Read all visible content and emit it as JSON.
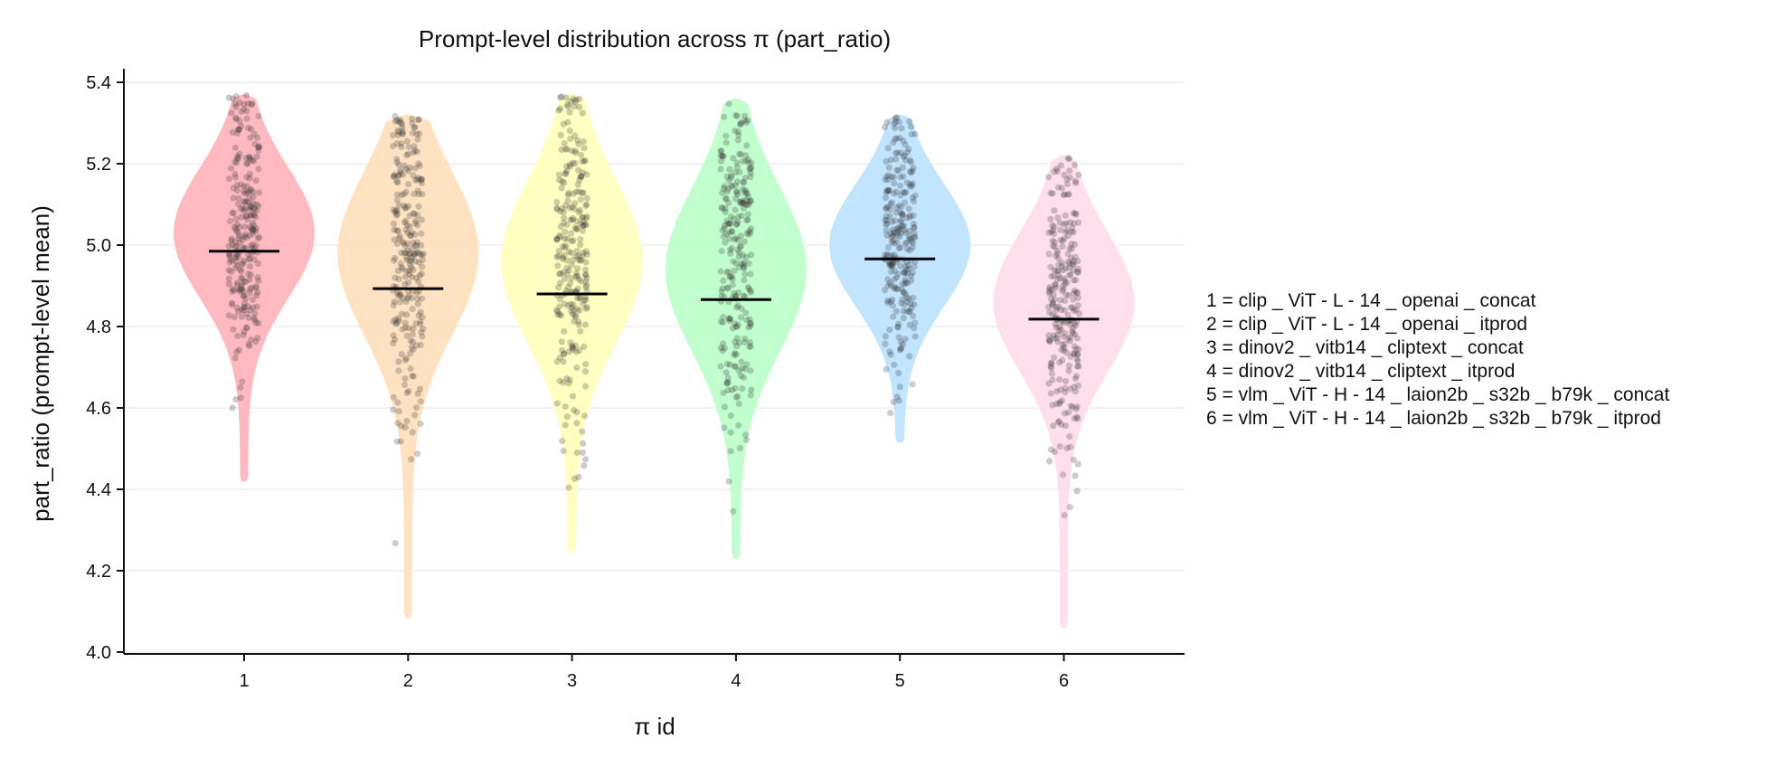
{
  "chart_data": {
    "type": "violin",
    "title": "Prompt-level distribution across π (part_ratio)",
    "xlabel": "π id",
    "ylabel": "part_ratio (prompt-level mean)",
    "ylim": [
      4.0,
      5.4
    ],
    "yticks": [
      4.0,
      4.2,
      4.4,
      4.6,
      4.8,
      5.0,
      5.2,
      5.4
    ],
    "ytick_labels": [
      "4.0",
      "4.2",
      "4.4",
      "4.6",
      "4.8",
      "5.0",
      "5.2",
      "5.4"
    ],
    "categories": [
      "1",
      "2",
      "3",
      "4",
      "5",
      "6"
    ],
    "grid": "horizontal",
    "legend_position": "right",
    "legend": [
      "1 = clip _ ViT - L - 14 _ openai _ concat",
      "2 = clip _ ViT - L - 14 _ openai _ itprod",
      "3 = dinov2 _ vitb14 _ cliptext _ concat",
      "4 = dinov2 _ vitb14 _ cliptext _ itprod",
      "5 = vlm _ ViT - H - 14 _ laion2b _ s32b _ b79k _ concat",
      "6 = vlm _ ViT - H - 14 _ laion2b _ s32b _ b79k _ itprod"
    ],
    "series": [
      {
        "id": "1",
        "color": "#ffb3ba",
        "mean": 4.985,
        "min": 4.42,
        "max": 5.37,
        "mode": 5.03,
        "spread": 0.16
      },
      {
        "id": "2",
        "color": "#ffdfba",
        "mean": 4.893,
        "min": 4.085,
        "max": 5.32,
        "mode": 4.98,
        "spread": 0.2
      },
      {
        "id": "3",
        "color": "#ffffba",
        "mean": 4.88,
        "min": 4.245,
        "max": 5.37,
        "mode": 4.96,
        "spread": 0.2
      },
      {
        "id": "4",
        "color": "#baffc9",
        "mean": 4.866,
        "min": 4.23,
        "max": 5.36,
        "mode": 4.94,
        "spread": 0.2
      },
      {
        "id": "5",
        "color": "#bae1ff",
        "mean": 4.966,
        "min": 4.515,
        "max": 5.32,
        "mode": 5.0,
        "spread": 0.15
      },
      {
        "id": "6",
        "color": "#ffdbea",
        "mean": 4.818,
        "min": 4.06,
        "max": 5.22,
        "mode": 4.86,
        "spread": 0.17
      }
    ],
    "points_per_series": 260
  }
}
